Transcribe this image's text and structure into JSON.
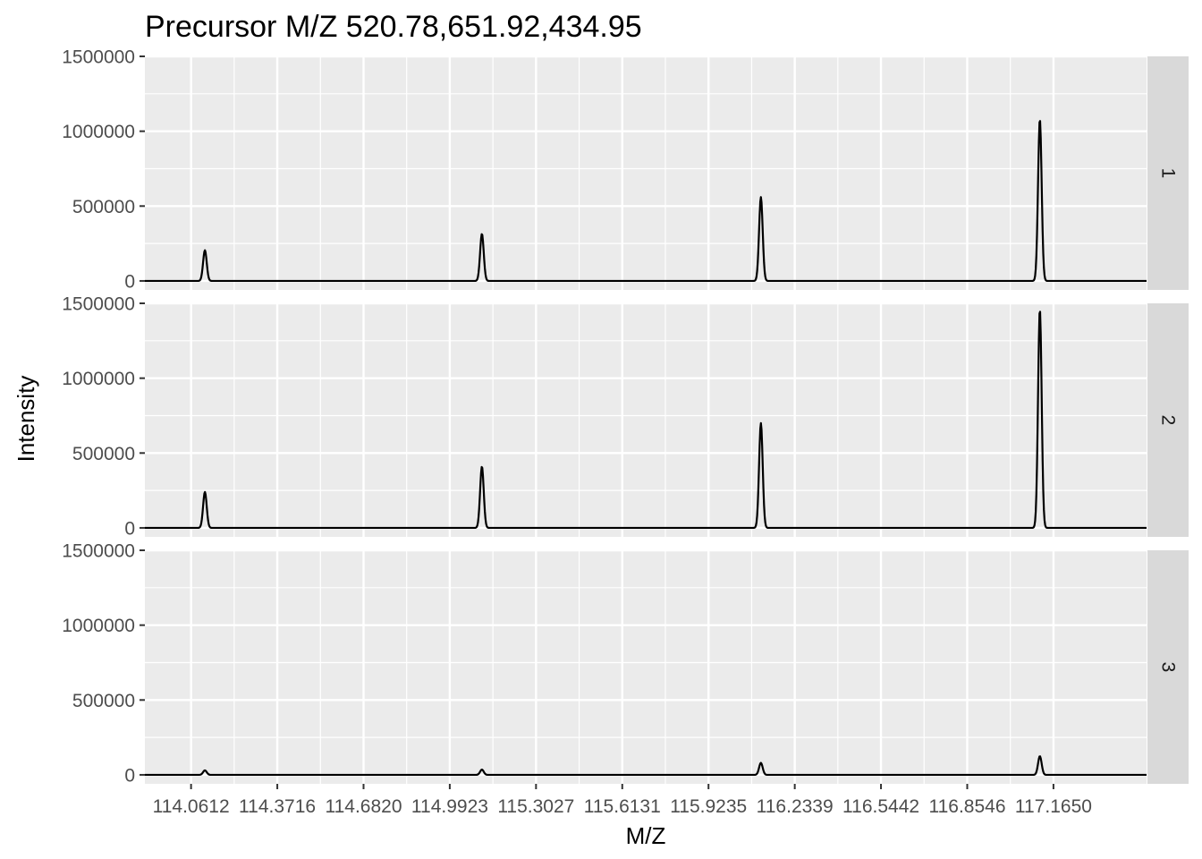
{
  "chart_data": {
    "type": "line",
    "title": "Precursor M/Z 520.78,651.92,434.95",
    "xlabel": "M/Z",
    "ylabel": "Intensity",
    "xlim": [
      113.895,
      117.5
    ],
    "ylim": [
      -60000,
      1500000
    ],
    "x_ticks": [
      114.0612,
      114.3716,
      114.682,
      114.9923,
      115.3027,
      115.6131,
      115.9235,
      116.2339,
      116.5442,
      116.8546,
      117.165
    ],
    "x_tick_labels": [
      "114.0612",
      "114.3716",
      "114.6820",
      "114.9923",
      "115.3027",
      "115.6131",
      "115.9235",
      "116.2339",
      "116.5442",
      "116.8546",
      "117.1650"
    ],
    "y_ticks": [
      0,
      500000,
      1000000,
      1500000
    ],
    "y_tick_labels": [
      "0",
      "500000",
      "1000000",
      "1500000"
    ],
    "grid": true,
    "facets": [
      {
        "label": "1",
        "peaks": [
          {
            "x": 114.111,
            "y": 205000
          },
          {
            "x": 115.108,
            "y": 315000
          },
          {
            "x": 116.112,
            "y": 560000
          },
          {
            "x": 117.116,
            "y": 1080000
          }
        ]
      },
      {
        "label": "2",
        "peaks": [
          {
            "x": 114.111,
            "y": 240000
          },
          {
            "x": 115.108,
            "y": 410000
          },
          {
            "x": 116.112,
            "y": 700000
          },
          {
            "x": 117.116,
            "y": 1460000
          }
        ]
      },
      {
        "label": "3",
        "peaks": [
          {
            "x": 114.111,
            "y": 30000
          },
          {
            "x": 115.108,
            "y": 35000
          },
          {
            "x": 116.112,
            "y": 80000
          },
          {
            "x": 117.116,
            "y": 125000
          }
        ]
      }
    ]
  },
  "colors": {
    "panel_bg": "#ebebeb",
    "grid": "#ffffff",
    "strip_bg": "#d9d9d9",
    "line": "#000000",
    "tick": "#333333"
  }
}
